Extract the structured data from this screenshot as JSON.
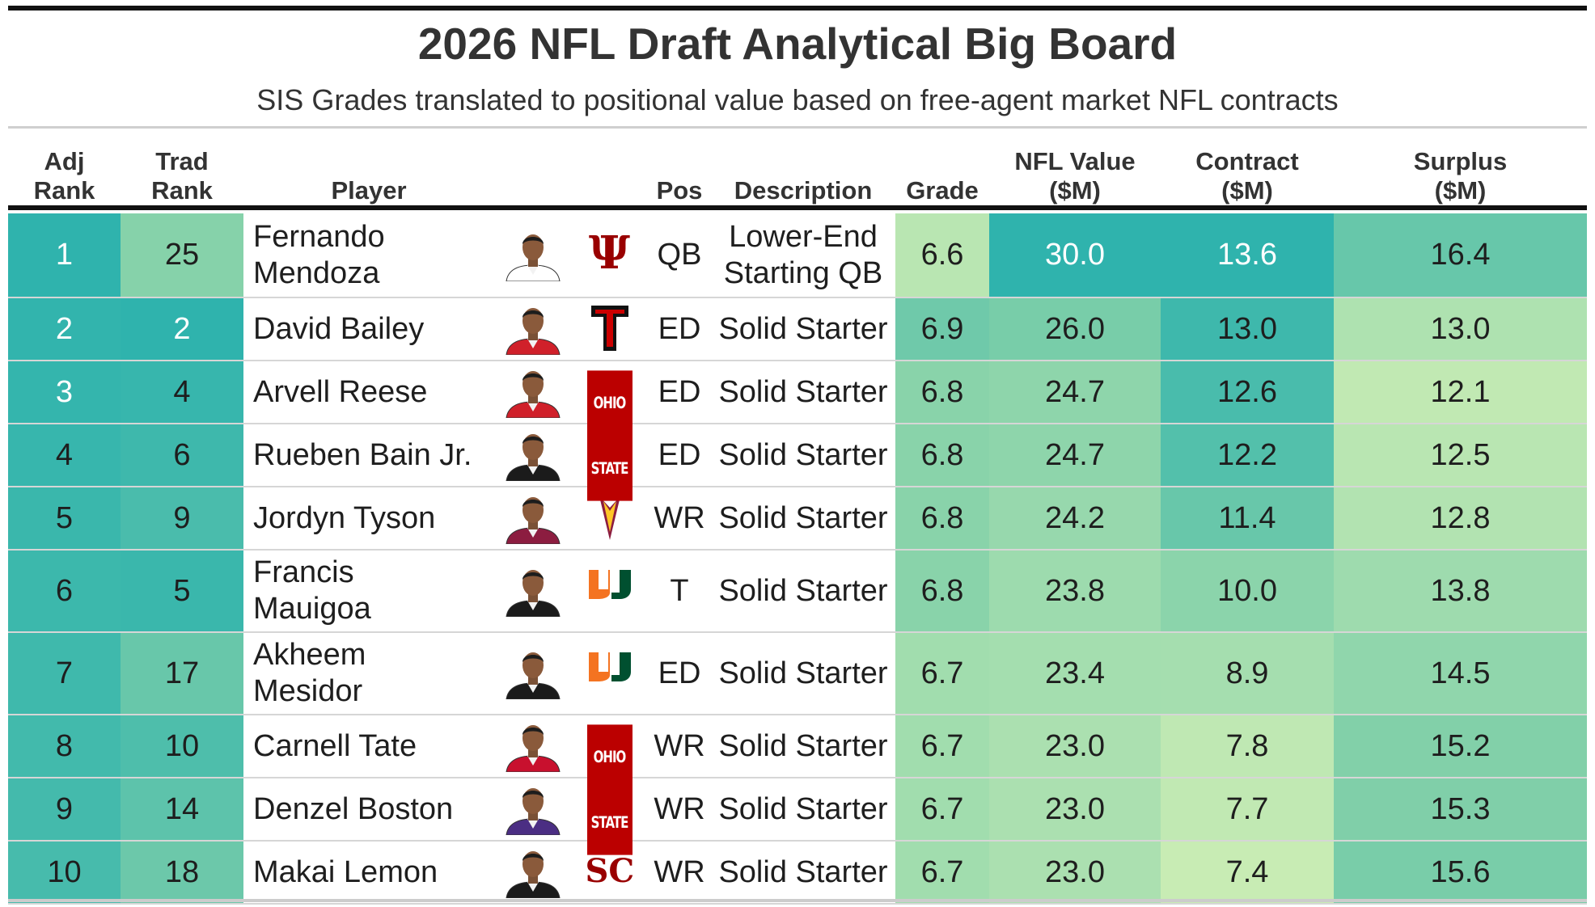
{
  "chart_data": {
    "type": "table",
    "title": "2026 NFL Draft Analytical Big Board",
    "subtitle": "SIS Grades translated to positional value based on free-agent market NFL contracts",
    "columns": {
      "adj_rank": "Adj\nRank",
      "trad_rank": "Trad\nRank",
      "player": "Player",
      "pos": "Pos",
      "description": "Description",
      "grade": "Grade",
      "nfl_value": "NFL Value\n($M)",
      "contract": "Contract\n($M)",
      "surplus": "Surplus\n($M)"
    },
    "rows": [
      {
        "adj_rank": "1",
        "trad_rank": "25",
        "player": "Fernando\nMendoza",
        "school_logo": "indiana-logo",
        "pos": "QB",
        "description": "Lower-End\nStarting QB",
        "grade": "6.6",
        "nfl_value": "30.0",
        "contract": "13.6",
        "surplus": "16.4"
      },
      {
        "adj_rank": "2",
        "trad_rank": "2",
        "player": "David Bailey",
        "school_logo": "texas-tech-logo",
        "pos": "ED",
        "description": "Solid Starter",
        "grade": "6.9",
        "nfl_value": "26.0",
        "contract": "13.0",
        "surplus": "13.0"
      },
      {
        "adj_rank": "3",
        "trad_rank": "4",
        "player": "Arvell Reese",
        "school_logo": "ohio-state-logo",
        "pos": "ED",
        "description": "Solid Starter",
        "grade": "6.8",
        "nfl_value": "24.7",
        "contract": "12.6",
        "surplus": "12.1"
      },
      {
        "adj_rank": "4",
        "trad_rank": "6",
        "player": "Rueben Bain Jr.",
        "school_logo": "miami-logo",
        "pos": "ED",
        "description": "Solid Starter",
        "grade": "6.8",
        "nfl_value": "24.7",
        "contract": "12.2",
        "surplus": "12.5"
      },
      {
        "adj_rank": "5",
        "trad_rank": "9",
        "player": "Jordyn Tyson",
        "school_logo": "arizona-state-logo",
        "pos": "WR",
        "description": "Solid Starter",
        "grade": "6.8",
        "nfl_value": "24.2",
        "contract": "11.4",
        "surplus": "12.8"
      },
      {
        "adj_rank": "6",
        "trad_rank": "5",
        "player": "Francis\nMauigoa",
        "school_logo": "miami-logo",
        "pos": "T",
        "description": "Solid Starter",
        "grade": "6.8",
        "nfl_value": "23.8",
        "contract": "10.0",
        "surplus": "13.8"
      },
      {
        "adj_rank": "7",
        "trad_rank": "17",
        "player": "Akheem\nMesidor",
        "school_logo": "miami-logo",
        "pos": "ED",
        "description": "Solid Starter",
        "grade": "6.7",
        "nfl_value": "23.4",
        "contract": "8.9",
        "surplus": "14.5"
      },
      {
        "adj_rank": "8",
        "trad_rank": "10",
        "player": "Carnell Tate",
        "school_logo": "ohio-state-logo",
        "pos": "WR",
        "description": "Solid Starter",
        "grade": "6.7",
        "nfl_value": "23.0",
        "contract": "7.8",
        "surplus": "15.2"
      },
      {
        "adj_rank": "9",
        "trad_rank": "14",
        "player": "Denzel Boston",
        "school_logo": "washington-logo",
        "pos": "WR",
        "description": "Solid Starter",
        "grade": "6.7",
        "nfl_value": "23.0",
        "contract": "7.7",
        "surplus": "15.3"
      },
      {
        "adj_rank": "10",
        "trad_rank": "18",
        "player": "Makai Lemon",
        "school_logo": "usc-logo",
        "pos": "WR",
        "description": "Solid Starter",
        "grade": "6.7",
        "nfl_value": "23.0",
        "contract": "7.4",
        "surplus": "15.6"
      }
    ],
    "color_scale": {
      "low": "#c8ecb4",
      "mid": "#7fcfa9",
      "high": "#2fb3ad",
      "light_text": "#ffffff",
      "dark_text": "#1e1e1e"
    }
  }
}
